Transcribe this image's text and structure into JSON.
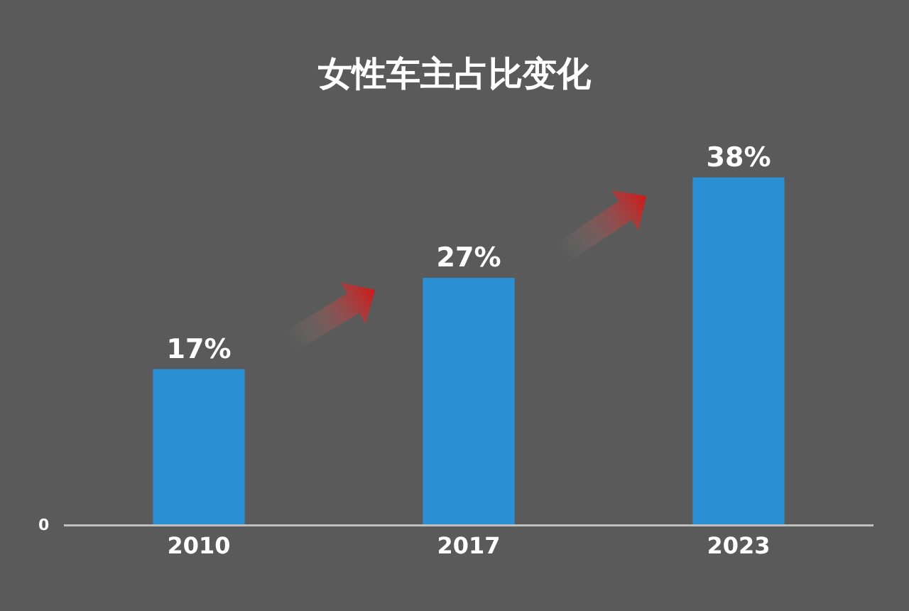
{
  "chart_data": {
    "type": "bar",
    "title": "女性车主占比变化",
    "categories": [
      "2010",
      "2017",
      "2023"
    ],
    "values": [
      17,
      27,
      38
    ],
    "value_labels": [
      "17%",
      "27%",
      "38%"
    ],
    "color": "#2b8fd4",
    "annotations": [
      "0"
    ],
    "legend": false
  }
}
